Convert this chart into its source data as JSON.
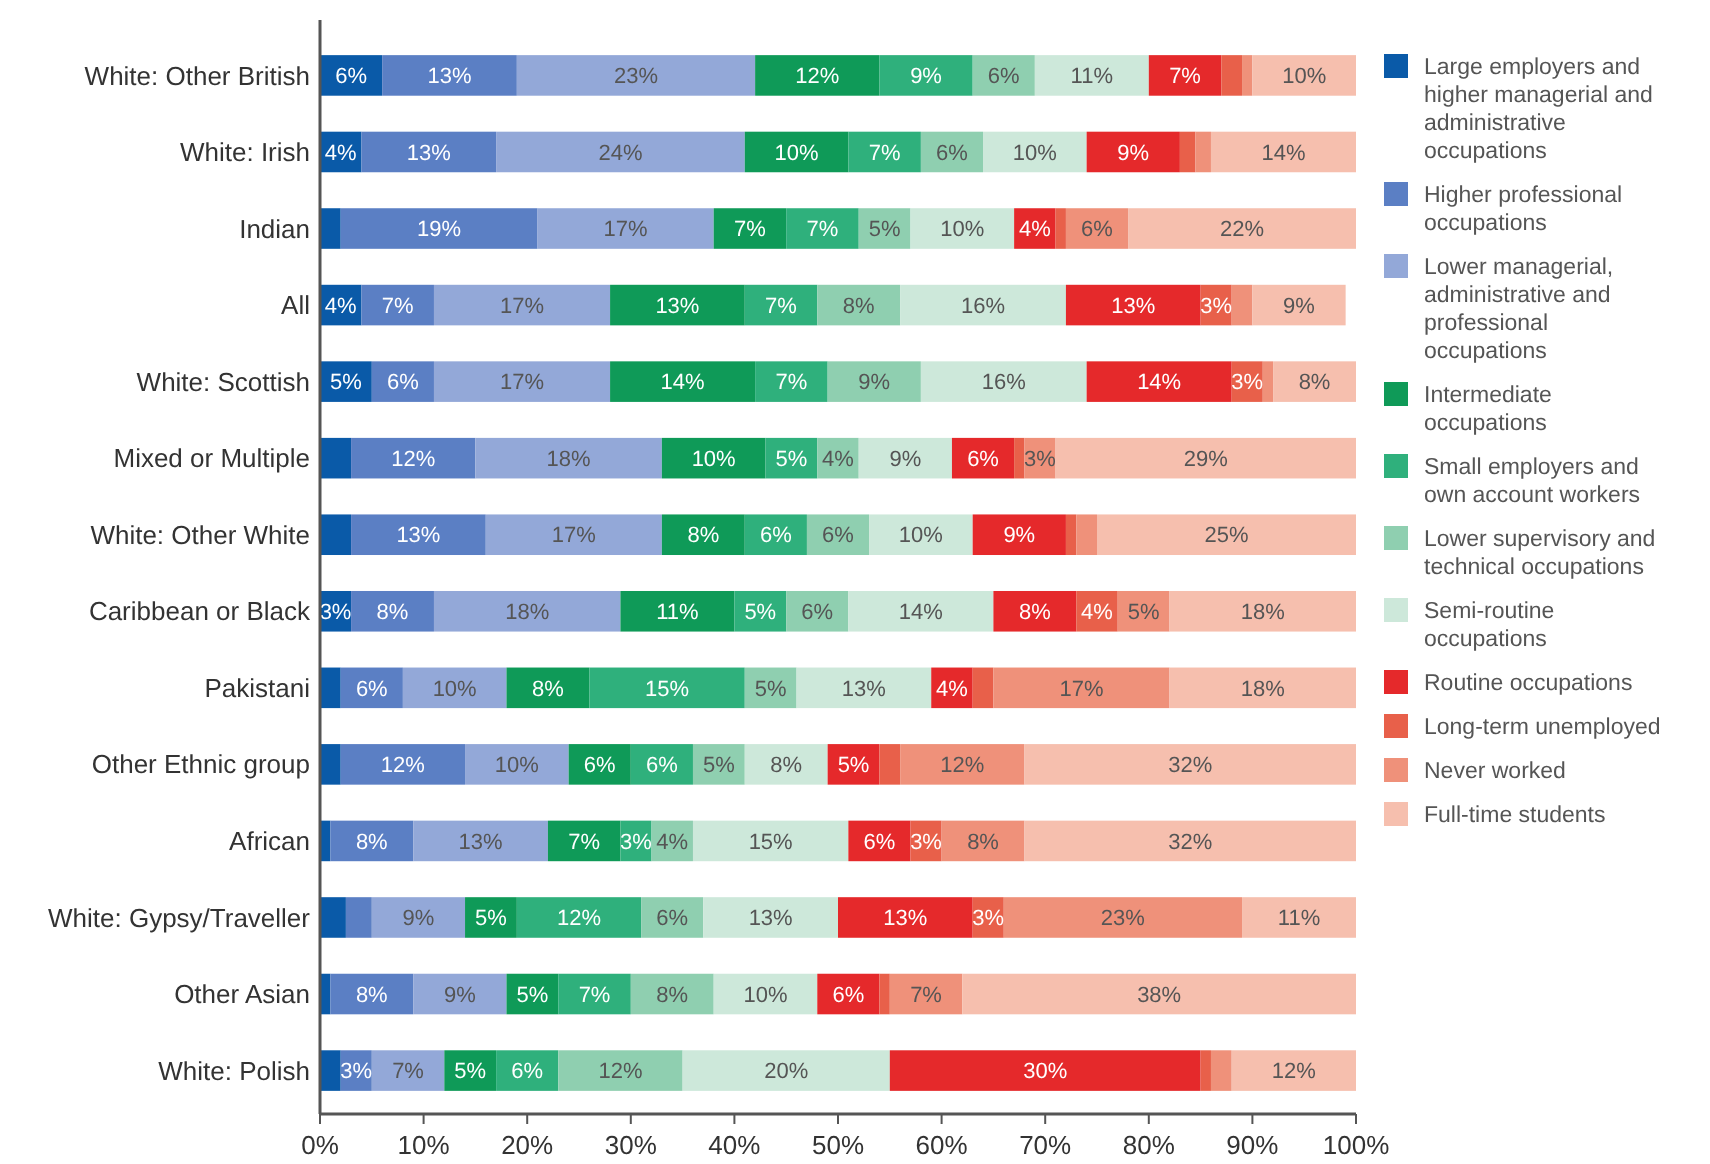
{
  "chart_data": {
    "type": "bar",
    "orientation": "horizontal",
    "stacked": true,
    "legend": "right",
    "grid": false,
    "categories": [
      "White: Other British",
      "White: Irish",
      "Indian",
      "All",
      "White: Scottish",
      "Mixed or Multiple",
      "White: Other White",
      "Caribbean or Black",
      "Pakistani",
      "Other Ethnic group",
      "African",
      "White: Gypsy/Traveller",
      "Other Asian",
      "White: Polish"
    ],
    "xlim": [
      0,
      100
    ],
    "xticks": [
      {
        "value": 0,
        "label": "0%"
      },
      {
        "value": 10,
        "label": "10%"
      },
      {
        "value": 20,
        "label": "20%"
      },
      {
        "value": 30,
        "label": "30%"
      },
      {
        "value": 40,
        "label": "40%"
      },
      {
        "value": 50,
        "label": "50%"
      },
      {
        "value": 60,
        "label": "60%"
      },
      {
        "value": 70,
        "label": "70%"
      },
      {
        "value": 80,
        "label": "80%"
      },
      {
        "value": 90,
        "label": "90%"
      },
      {
        "value": 100,
        "label": "100%"
      }
    ],
    "series": [
      {
        "name": "Large employers and higher managerial and administrative occupations",
        "color": "#0a5aa8",
        "values": [
          6,
          4,
          2,
          4,
          5,
          3,
          3,
          3,
          2,
          2,
          1,
          2.5,
          1,
          2
        ],
        "value_labels": [
          "6%",
          "4%",
          null,
          "4%",
          "5%",
          null,
          null,
          "3%",
          null,
          null,
          null,
          null,
          null,
          null
        ]
      },
      {
        "name": "Higher professional occupations",
        "color": "#5b7fc4",
        "values": [
          13,
          13,
          19,
          7,
          6,
          12,
          13,
          8,
          6,
          12,
          8,
          2.5,
          8,
          3
        ],
        "value_labels": [
          "13%",
          "13%",
          "19%",
          "7%",
          "6%",
          "12%",
          "13%",
          "8%",
          "6%",
          "12%",
          "8%",
          null,
          "8%",
          "3%"
        ]
      },
      {
        "name": "Lower managerial, administrative and professional occupations",
        "color": "#93a8d8",
        "values": [
          23,
          24,
          17,
          17,
          17,
          18,
          17,
          18,
          10,
          10,
          13,
          9,
          9,
          7
        ],
        "value_labels": [
          "23%",
          "24%",
          "17%",
          "17%",
          "17%",
          "18%",
          "17%",
          "18%",
          "10%",
          "10%",
          "13%",
          "9%",
          "9%",
          "7%"
        ]
      },
      {
        "name": "Intermediate occupations",
        "color": "#0f9a58",
        "values": [
          12,
          10,
          7,
          13,
          14,
          10,
          8,
          11,
          8,
          6,
          7,
          5,
          5,
          5
        ],
        "value_labels": [
          "12%",
          "10%",
          "7%",
          "13%",
          "14%",
          "10%",
          "8%",
          "11%",
          "8%",
          "6%",
          "7%",
          "5%",
          "5%",
          "5%"
        ]
      },
      {
        "name": "Small employers and own account workers",
        "color": "#2fb07c",
        "values": [
          9,
          7,
          7,
          7,
          7,
          5,
          6,
          5,
          15,
          6,
          3,
          12,
          7,
          6
        ],
        "value_labels": [
          "9%",
          "7%",
          "7%",
          "7%",
          "7%",
          "5%",
          "6%",
          "5%",
          "15%",
          "6%",
          "3%",
          "12%",
          "7%",
          "6%"
        ]
      },
      {
        "name": "Lower supervisory and technical occupations",
        "color": "#8fcfb0",
        "values": [
          6,
          6,
          5,
          8,
          9,
          4,
          6,
          6,
          5,
          5,
          4,
          6,
          8,
          12
        ],
        "value_labels": [
          "6%",
          "6%",
          "5%",
          "8%",
          "9%",
          "4%",
          "6%",
          "6%",
          "5%",
          "5%",
          "4%",
          "6%",
          "8%",
          "12%"
        ]
      },
      {
        "name": "Semi-routine occupations",
        "color": "#cde8da",
        "values": [
          11,
          10,
          10,
          16,
          16,
          9,
          10,
          14,
          13,
          8,
          15,
          13,
          10,
          20
        ],
        "value_labels": [
          "11%",
          "10%",
          "10%",
          "16%",
          "16%",
          "9%",
          "10%",
          "14%",
          "13%",
          "8%",
          "15%",
          "13%",
          "10%",
          "20%"
        ]
      },
      {
        "name": "Routine occupations",
        "color": "#e5292b",
        "values": [
          7,
          9,
          4,
          13,
          14,
          6,
          9,
          8,
          4,
          5,
          6,
          13,
          6,
          30
        ],
        "value_labels": [
          "7%",
          "9%",
          "4%",
          "13%",
          "14%",
          "6%",
          "9%",
          "8%",
          "4%",
          "5%",
          "6%",
          "13%",
          "6%",
          "30%"
        ]
      },
      {
        "name": "Long-term unemployed",
        "color": "#e8604a",
        "values": [
          2,
          1.5,
          1,
          3,
          3,
          1,
          1,
          4,
          2,
          2,
          3,
          3,
          1,
          1
        ],
        "value_labels": [
          null,
          null,
          null,
          "3%",
          "3%",
          null,
          null,
          "4%",
          null,
          null,
          "3%",
          "3%",
          null,
          null
        ]
      },
      {
        "name": "Never worked",
        "color": "#ef917a",
        "values": [
          1,
          1.5,
          6,
          2,
          1,
          3,
          2,
          5,
          17,
          12,
          8,
          23,
          7,
          2
        ],
        "value_labels": [
          null,
          null,
          "6%",
          null,
          null,
          "3%",
          null,
          "5%",
          "17%",
          "12%",
          "8%",
          "23%",
          "7%",
          null
        ]
      },
      {
        "name": "Full-time students",
        "color": "#f6bfae",
        "values": [
          10,
          14,
          22,
          9,
          8,
          29,
          25,
          18,
          18,
          32,
          32,
          11,
          38,
          12
        ],
        "value_labels": [
          "10%",
          "14%",
          "22%",
          "9%",
          "8%",
          "29%",
          "25%",
          "18%",
          "18%",
          "32%",
          "32%",
          "11%",
          "38%",
          "12%"
        ]
      }
    ]
  }
}
